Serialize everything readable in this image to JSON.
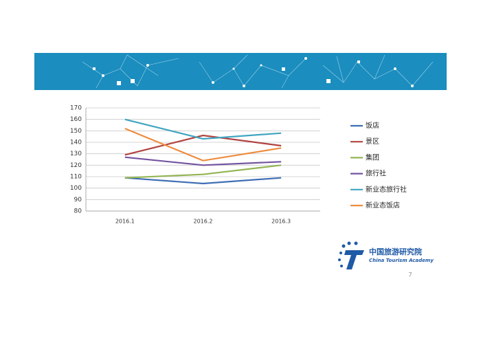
{
  "chart_data": {
    "type": "line",
    "categories": [
      "2016.1",
      "2016.2",
      "2016.3"
    ],
    "series": [
      {
        "name": "饭店",
        "color": "#3f6fb5",
        "values": [
          109,
          104,
          109
        ]
      },
      {
        "name": "景区",
        "color": "#b0433f",
        "values": [
          129,
          146,
          137
        ]
      },
      {
        "name": "集团",
        "color": "#93b553",
        "values": [
          109,
          112,
          120
        ]
      },
      {
        "name": "旅行社",
        "color": "#7354a0",
        "values": [
          127,
          120,
          123
        ]
      },
      {
        "name": "新业态旅行社",
        "color": "#41a5c0",
        "values": [
          160,
          143,
          148
        ]
      },
      {
        "name": "新业态饭店",
        "color": "#ee8c3e",
        "values": [
          152,
          124,
          135
        ]
      }
    ],
    "ylim": [
      80,
      170
    ],
    "yticks": [
      80,
      90,
      100,
      110,
      120,
      130,
      140,
      150,
      160,
      170
    ],
    "grid": true,
    "legend": "right"
  },
  "logo": {
    "name": "中国旅游研究院",
    "subtitle": "China Tourism Academy"
  },
  "page_number": 7
}
